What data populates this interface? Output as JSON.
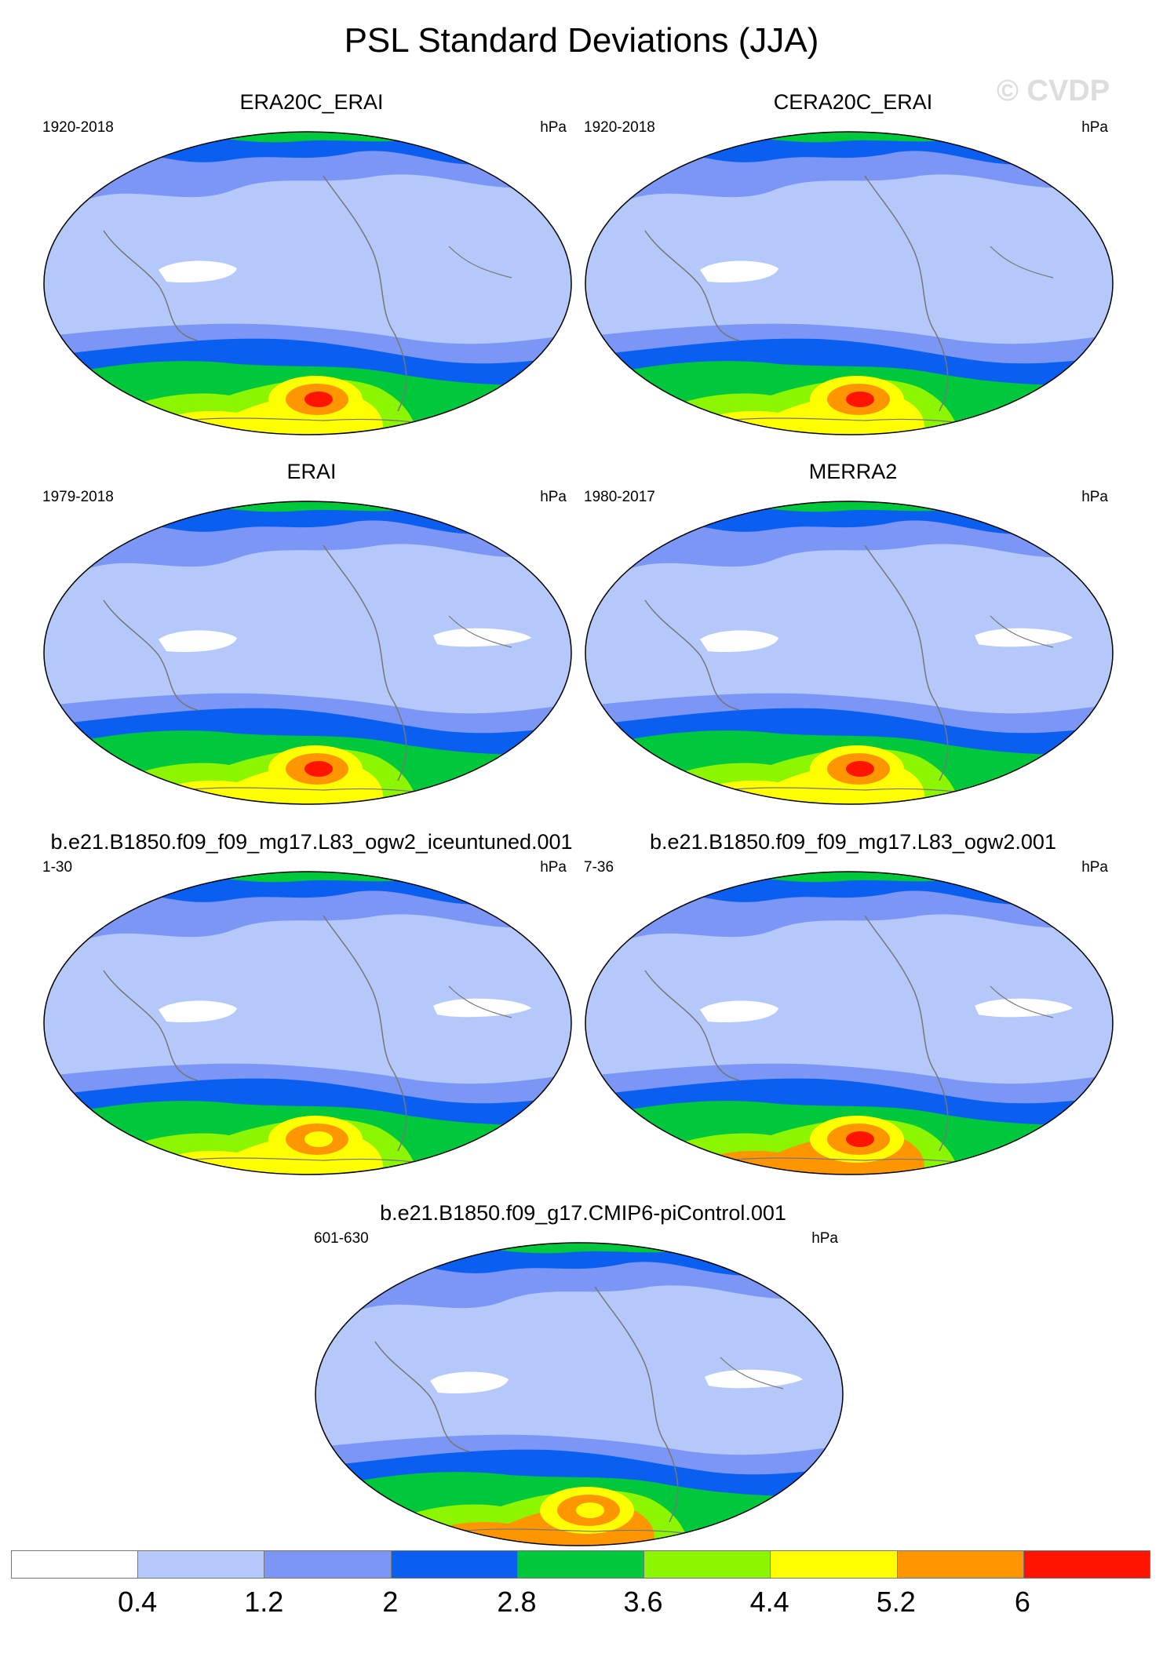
{
  "figure": {
    "title": "PSL Standard Deviations (JJA)",
    "watermark": "© CVDP"
  },
  "panels": [
    {
      "title": "ERA20C_ERAI",
      "years": "1920-2018",
      "units": "hPa"
    },
    {
      "title": "CERA20C_ERAI",
      "years": "1920-2018",
      "units": "hPa"
    },
    {
      "title": "ERAI",
      "years": "1979-2018",
      "units": "hPa"
    },
    {
      "title": "MERRA2",
      "years": "1980-2017",
      "units": "hPa"
    },
    {
      "title": "b.e21.B1850.f09_f09_mg17.L83_ogw2_iceuntuned.001",
      "years": "1-30",
      "units": "hPa"
    },
    {
      "title": "b.e21.B1850.f09_f09_mg17.L83_ogw2.001",
      "years": "7-36",
      "units": "hPa"
    },
    {
      "title": "b.e21.B1850.f09_g17.CMIP6-piControl.001",
      "years": "601-630",
      "units": "hPa"
    }
  ],
  "colorbar": {
    "labels": [
      "0.4",
      "1.2",
      "2",
      "2.8",
      "3.6",
      "4.4",
      "5.2",
      "6"
    ],
    "colors": [
      "#ffffff",
      "#b4c8fa",
      "#7b96f5",
      "#0a5ff0",
      "#00c83c",
      "#8cf500",
      "#ffff00",
      "#ff9600",
      "#ff1400"
    ]
  },
  "chart_data": {
    "type": "map",
    "variable": "PSL Standard Deviations (JJA)",
    "units": "hPa",
    "contour_levels": [
      0.4,
      1.2,
      2,
      2.8,
      3.6,
      4.4,
      5.2,
      6
    ],
    "panels": [
      "ERA20C_ERAI",
      "CERA20C_ERAI",
      "ERAI",
      "MERRA2",
      "b.e21.B1850.f09_f09_mg17.L83_ogw2_iceuntuned.001",
      "b.e21.B1850.f09_f09_mg17.L83_ogw2.001",
      "b.e21.B1850.f09_g17.CMIP6-piControl.001"
    ]
  }
}
